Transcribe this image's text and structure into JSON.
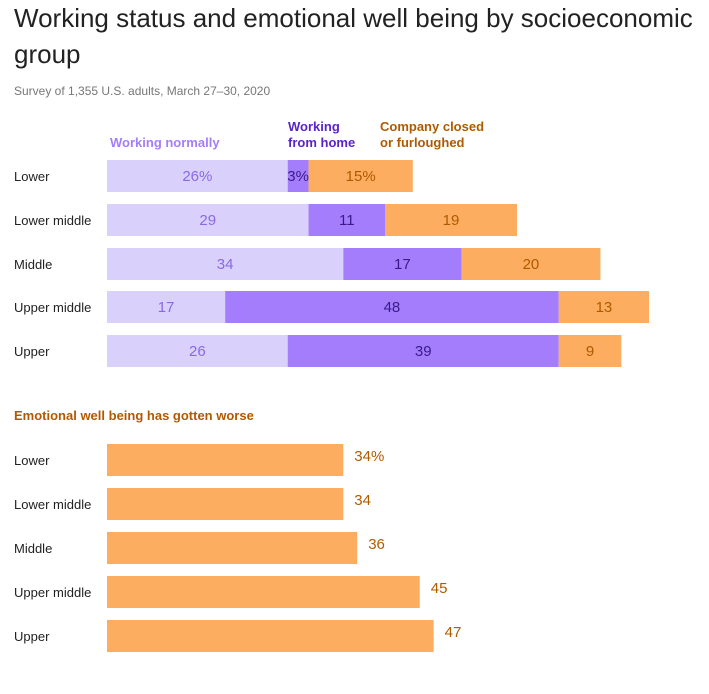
{
  "title": "Working status and emotional well being by socioeconomic group",
  "subtitle": "Survey of 1,355 U.S. adults, March 27–30, 2020",
  "colors": {
    "working_normally": "#d9d1fc",
    "working_from_home": "#a47dfc",
    "company_closed": "#fdad5f",
    "label_normally": "#a47dfc",
    "label_home": "#5a23c8",
    "label_closed": "#b05a00",
    "label_value_normally": "#8a68e6",
    "label_value_home": "#3a1a8a",
    "label_value_closed": "#b05a00"
  },
  "legend": {
    "working_normally": "Working normally",
    "working_from_home": "Working\nfrom home",
    "company_closed": "Company closed\nor furloughed"
  },
  "section2_label": "Emotional well being has gotten worse",
  "chart_data": [
    {
      "type": "bar",
      "stacked": true,
      "orientation": "horizontal",
      "categories": [
        "Lower",
        "Lower middle",
        "Middle",
        "Upper middle",
        "Upper"
      ],
      "series": [
        {
          "name": "Working normally",
          "values": [
            26,
            29,
            34,
            17,
            26
          ],
          "labels": [
            "26%",
            "29",
            "34",
            "17",
            "26"
          ]
        },
        {
          "name": "Working from home",
          "values": [
            3,
            11,
            17,
            48,
            39
          ],
          "labels": [
            "3%",
            "11",
            "17",
            "48",
            "39"
          ]
        },
        {
          "name": "Company closed or furloughed",
          "values": [
            15,
            19,
            20,
            13,
            9
          ],
          "labels": [
            "15%",
            "19",
            "20",
            "13",
            "9"
          ]
        }
      ]
    },
    {
      "type": "bar",
      "orientation": "horizontal",
      "title": "Emotional well being has gotten worse",
      "categories": [
        "Lower",
        "Lower middle",
        "Middle",
        "Upper middle",
        "Upper"
      ],
      "values": [
        34,
        34,
        36,
        45,
        47
      ],
      "labels": [
        "34%",
        "34",
        "36",
        "45",
        "47"
      ]
    }
  ]
}
